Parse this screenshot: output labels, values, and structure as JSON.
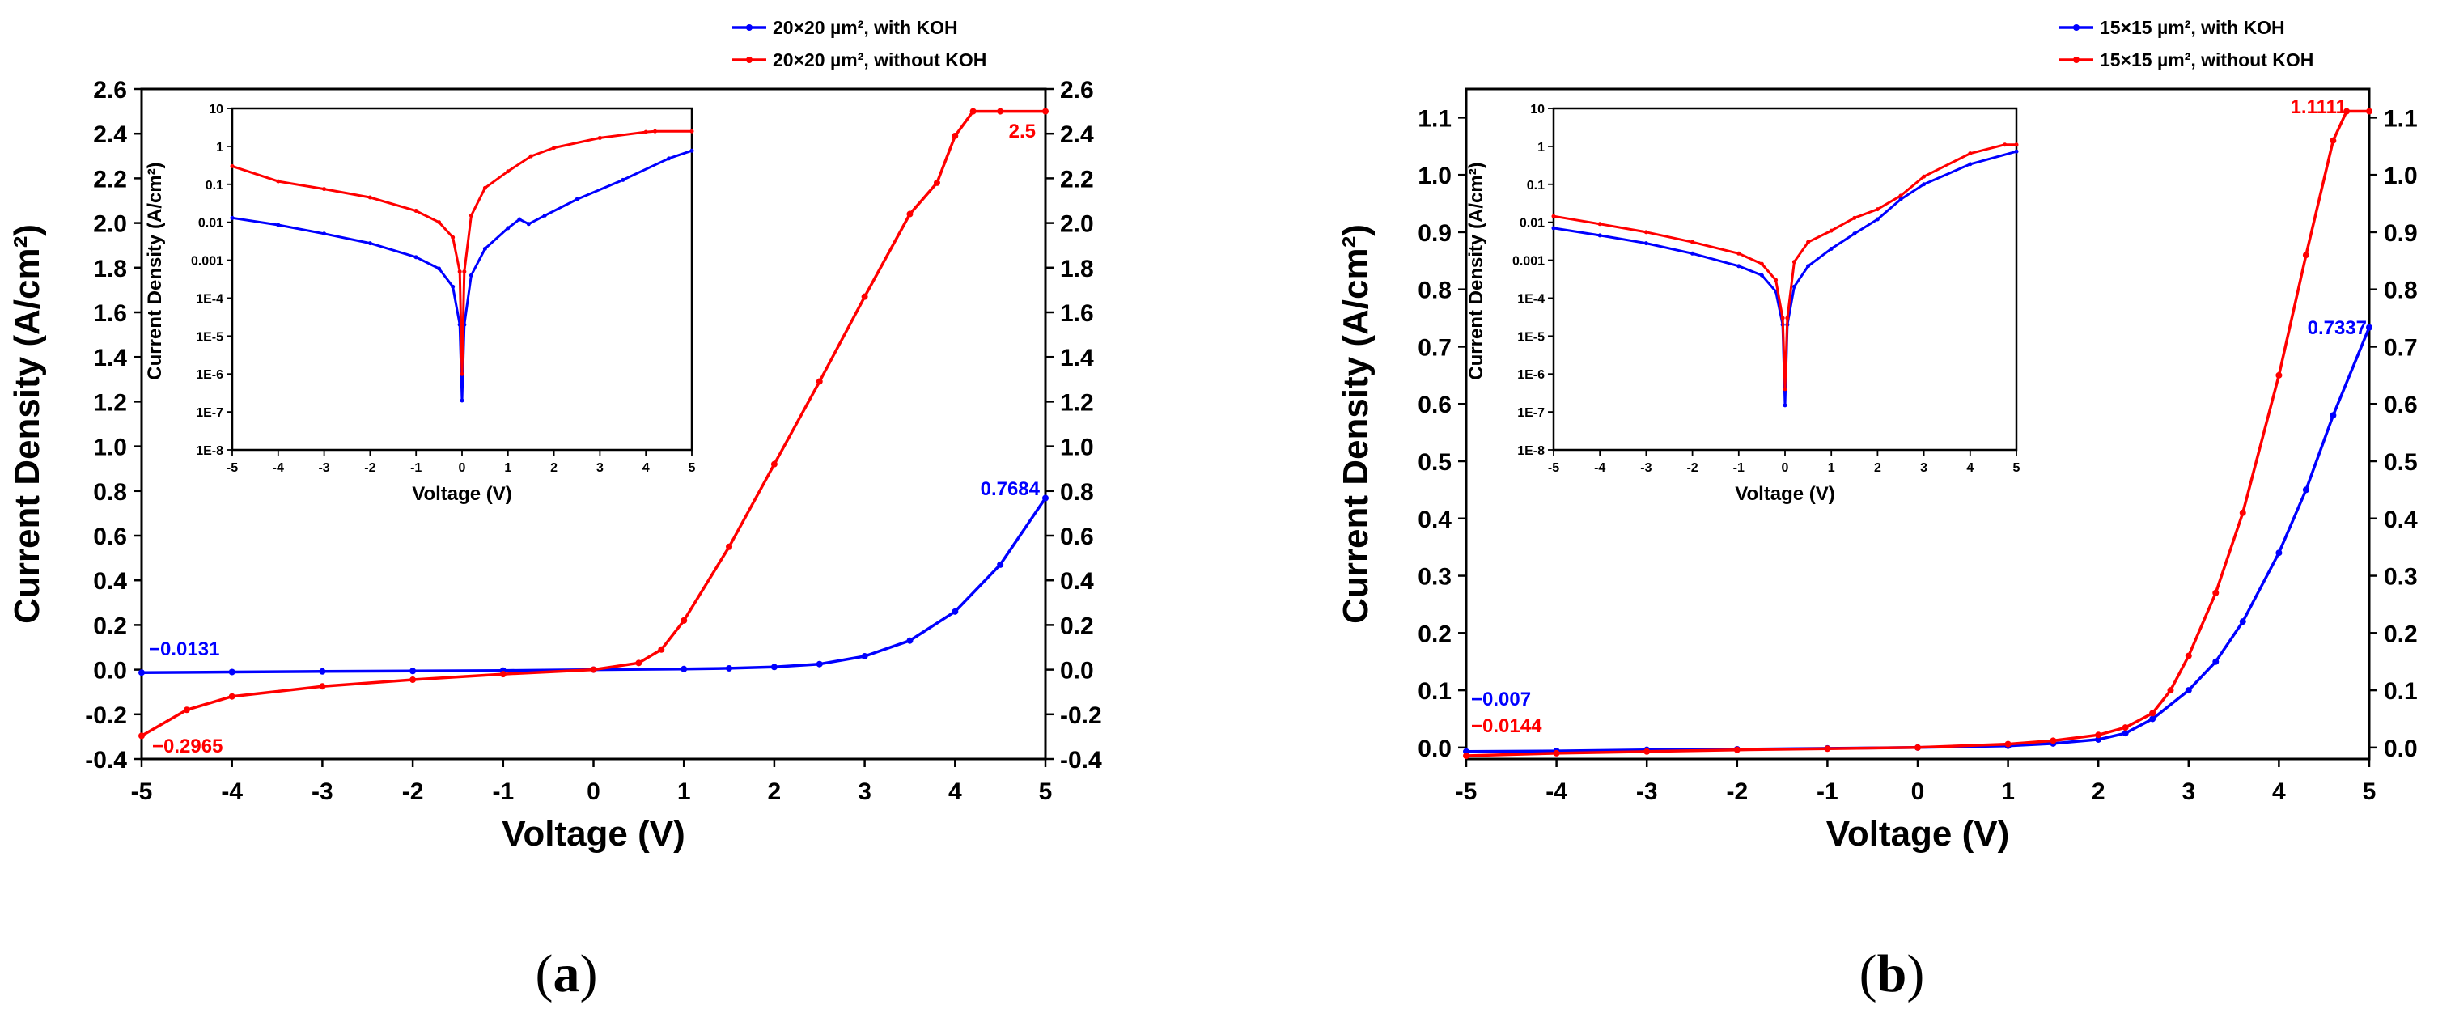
{
  "chart_data": [
    {
      "id": "a",
      "type": "line",
      "panel_label": "a",
      "xlabel": "Voltage (V)",
      "ylabel": "Current Density (A/cm²)",
      "xlim": [
        -5,
        5
      ],
      "ylim": [
        -0.4,
        2.6
      ],
      "xticks": [
        -5,
        -4,
        -3,
        -2,
        -1,
        0,
        1,
        2,
        3,
        4,
        5
      ],
      "yticks": [
        "-0.4",
        "-0.2",
        "0.0",
        "0.2",
        "0.4",
        "0.6",
        "0.8",
        "1.0",
        "1.2",
        "1.4",
        "1.6",
        "1.8",
        "2.0",
        "2.2",
        "2.4",
        "2.6"
      ],
      "legend_position": "top-right",
      "series": [
        {
          "name": "20×20 µm², with KOH",
          "color": "#0000ff",
          "x": [
            -5,
            -4,
            -3,
            -2,
            -1,
            0,
            1,
            1.5,
            2,
            2.5,
            3,
            3.5,
            4,
            4.5,
            5
          ],
          "y": [
            -0.0131,
            -0.0105,
            -0.008,
            -0.006,
            -0.004,
            0,
            0.003,
            0.006,
            0.012,
            0.025,
            0.06,
            0.13,
            0.26,
            0.47,
            0.7684
          ]
        },
        {
          "name": "20×20 µm², without KOH",
          "color": "#ff0000",
          "x": [
            -5,
            -4.5,
            -4,
            -3,
            -2,
            -1,
            0,
            0.5,
            0.75,
            1,
            1.5,
            2,
            2.5,
            3,
            3.5,
            3.8,
            4,
            4.2,
            4.5,
            5
          ],
          "y": [
            -0.2965,
            -0.18,
            -0.12,
            -0.075,
            -0.045,
            -0.02,
            0,
            0.03,
            0.09,
            0.22,
            0.55,
            0.92,
            1.29,
            1.67,
            2.04,
            2.18,
            2.39,
            2.5,
            2.5,
            2.5
          ]
        }
      ],
      "annotations": [
        {
          "text": "0.7684",
          "color": "#0000ff"
        },
        {
          "text": "2.5",
          "color": "#ff0000"
        },
        {
          "text": "−0.0131",
          "color": "#0000ff"
        },
        {
          "text": "−0.2965",
          "color": "#ff0000"
        }
      ],
      "inset": {
        "type": "line",
        "yscale": "log",
        "xlabel": "Voltage (V)",
        "ylabel": "Current Density (A/cm²)",
        "xlim": [
          -5,
          5
        ],
        "ylim_log10": [
          -8,
          1
        ],
        "xticks": [
          -5,
          -4,
          -3,
          -2,
          -1,
          0,
          1,
          2,
          3,
          4,
          5
        ],
        "yticks": [
          "1E-8",
          "1E-7",
          "1E-6",
          "1E-5",
          "1E-4",
          "0.001",
          "0.01",
          "0.1",
          "1",
          "10"
        ],
        "series": [
          {
            "name": "with KOH",
            "color": "#0000ff",
            "x": [
              -5,
              -4,
              -3,
              -2,
              -1,
              -0.5,
              -0.2,
              -0.05,
              0,
              0.05,
              0.2,
              0.5,
              1,
              1.25,
              1.45,
              1.8,
              2.5,
              3.5,
              4.5,
              5
            ],
            "y": [
              0.013,
              0.0085,
              0.005,
              0.0028,
              0.0012,
              0.0006,
              0.0002,
              2e-05,
              2e-07,
              2e-05,
              0.0004,
              0.002,
              0.007,
              0.012,
              0.009,
              0.015,
              0.04,
              0.13,
              0.48,
              0.77
            ]
          },
          {
            "name": "without KOH",
            "color": "#ff0000",
            "x": [
              -5,
              -4,
              -3,
              -2,
              -1,
              -0.5,
              -0.2,
              -0.05,
              0,
              0.05,
              0.2,
              0.5,
              1,
              1.5,
              2,
              3,
              4,
              4.2,
              5
            ],
            "y": [
              0.3,
              0.12,
              0.075,
              0.045,
              0.02,
              0.01,
              0.004,
              0.0005,
              1e-06,
              0.0005,
              0.015,
              0.08,
              0.22,
              0.55,
              0.92,
              1.67,
              2.39,
              2.5,
              2.5
            ]
          }
        ]
      }
    },
    {
      "id": "b",
      "type": "line",
      "panel_label": "b",
      "xlabel": "Voltage (V)",
      "ylabel": "Current Density (A/cm²)",
      "xlim": [
        -5,
        5
      ],
      "ylim": [
        -0.02,
        1.15
      ],
      "xticks": [
        -5,
        -4,
        -3,
        -2,
        -1,
        0,
        1,
        2,
        3,
        4,
        5
      ],
      "yticks": [
        "0.0",
        "0.1",
        "0.2",
        "0.3",
        "0.4",
        "0.5",
        "0.6",
        "0.7",
        "0.8",
        "0.9",
        "1.0",
        "1.1"
      ],
      "legend_position": "top-right",
      "series": [
        {
          "name": "15×15 µm², with KOH",
          "color": "#0000ff",
          "x": [
            -5,
            -4,
            -3,
            -2,
            -1,
            0,
            1,
            1.5,
            2,
            2.3,
            2.6,
            3,
            3.3,
            3.6,
            4,
            4.3,
            4.6,
            5
          ],
          "y": [
            -0.007,
            -0.006,
            -0.004,
            -0.003,
            -0.0015,
            0,
            0.003,
            0.007,
            0.014,
            0.025,
            0.05,
            0.1,
            0.15,
            0.22,
            0.34,
            0.45,
            0.58,
            0.7337
          ]
        },
        {
          "name": "15×15 µm², without KOH",
          "color": "#ff0000",
          "x": [
            -5,
            -4,
            -3,
            -2,
            -1,
            0,
            1,
            1.5,
            2,
            2.3,
            2.6,
            2.8,
            3,
            3.3,
            3.6,
            4,
            4.3,
            4.6,
            4.75,
            5
          ],
          "y": [
            -0.0144,
            -0.01,
            -0.007,
            -0.004,
            -0.002,
            0,
            0.006,
            0.012,
            0.022,
            0.035,
            0.06,
            0.1,
            0.16,
            0.27,
            0.41,
            0.65,
            0.86,
            1.06,
            1.1111,
            1.1111
          ]
        }
      ],
      "annotations": [
        {
          "text": "1.1111",
          "color": "#ff0000"
        },
        {
          "text": "0.7337",
          "color": "#0000ff"
        },
        {
          "text": "−0.007",
          "color": "#0000ff"
        },
        {
          "text": "−0.0144",
          "color": "#ff0000"
        }
      ],
      "inset": {
        "type": "line",
        "yscale": "log",
        "xlabel": "Voltage (V)",
        "ylabel": "Current Density (A/cm²)",
        "xlim": [
          -5,
          5
        ],
        "ylim_log10": [
          -8,
          1
        ],
        "xticks": [
          -5,
          -4,
          -3,
          -2,
          -1,
          0,
          1,
          2,
          3,
          4,
          5
        ],
        "yticks": [
          "1E-8",
          "1E-7",
          "1E-6",
          "1E-5",
          "1E-4",
          "0.001",
          "0.01",
          "0.1",
          "1",
          "10"
        ],
        "series": [
          {
            "name": "with KOH",
            "color": "#0000ff",
            "x": [
              -5,
              -4,
              -3,
              -2,
              -1,
              -0.5,
              -0.2,
              -0.05,
              0,
              0.05,
              0.2,
              0.5,
              1,
              1.5,
              2,
              2.5,
              3,
              4,
              5
            ],
            "y": [
              0.007,
              0.0045,
              0.0028,
              0.0015,
              0.0007,
              0.0004,
              0.00015,
              2e-05,
              1.5e-07,
              2e-05,
              0.0002,
              0.0007,
              0.002,
              0.005,
              0.012,
              0.04,
              0.1,
              0.34,
              0.7337
            ]
          },
          {
            "name": "without KOH",
            "color": "#ff0000",
            "x": [
              -5,
              -4,
              -3,
              -2,
              -1,
              -0.5,
              -0.2,
              -0.05,
              0,
              0.05,
              0.2,
              0.5,
              1,
              1.5,
              2,
              2.5,
              3,
              4,
              4.75,
              5
            ],
            "y": [
              0.0144,
              0.009,
              0.0055,
              0.003,
              0.0015,
              0.0008,
              0.0003,
              3e-05,
              4e-07,
              3e-05,
              0.0009,
              0.003,
              0.006,
              0.013,
              0.022,
              0.05,
              0.16,
              0.65,
              1.1111,
              1.1111
            ]
          }
        ]
      }
    }
  ]
}
